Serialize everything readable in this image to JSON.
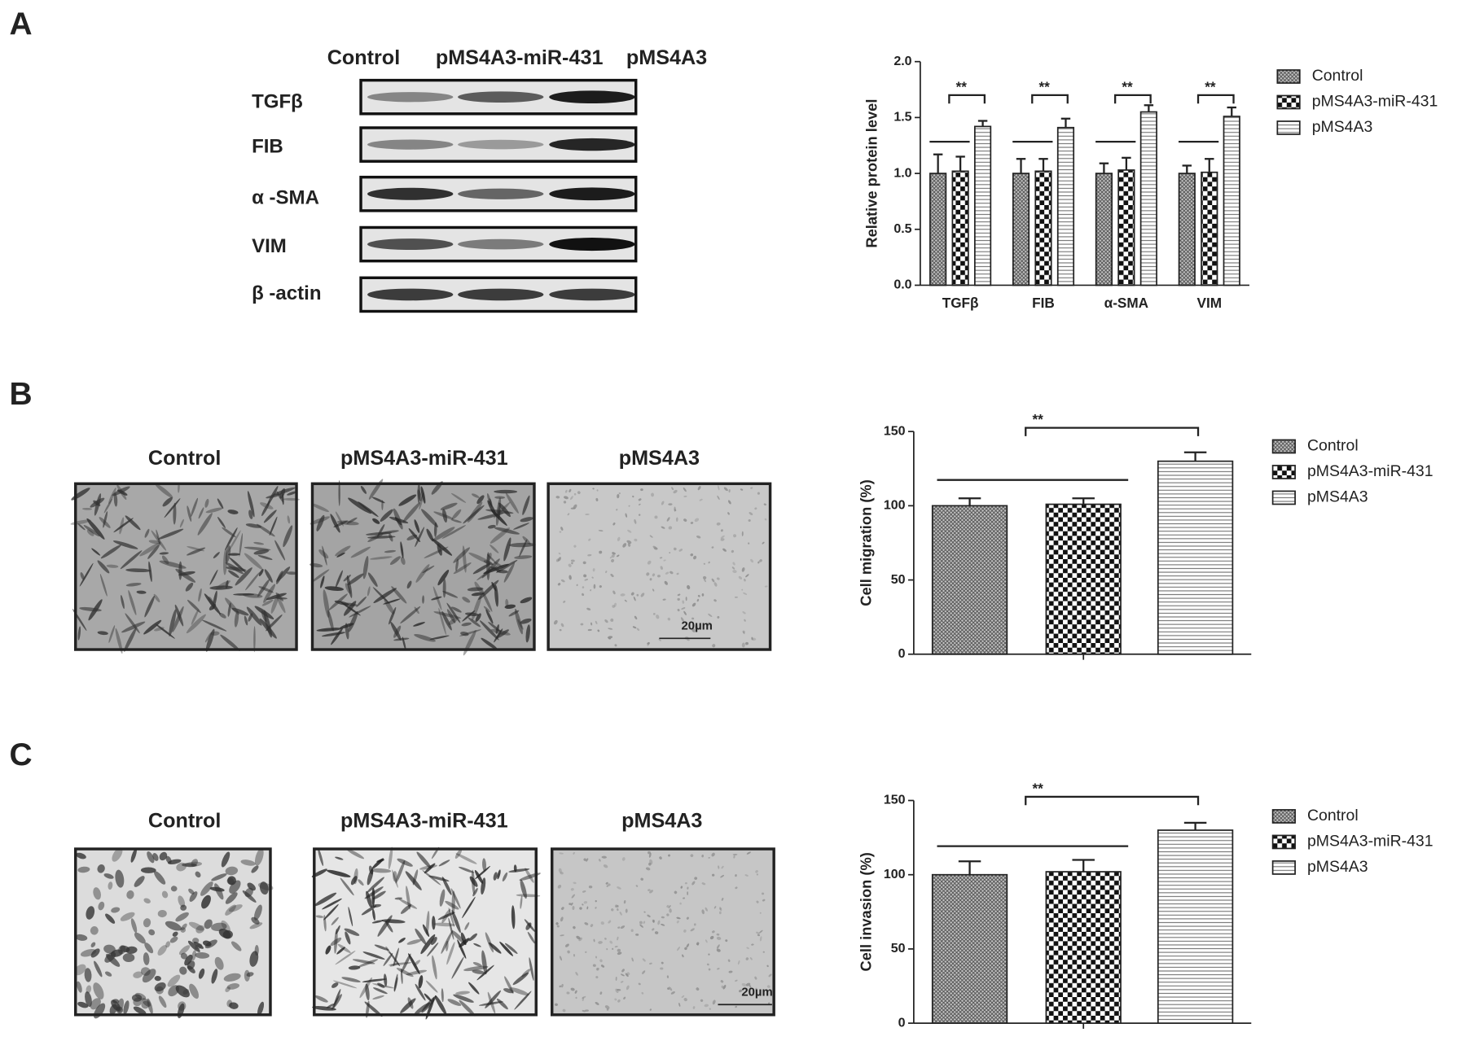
{
  "figure": {
    "panel_labels": [
      "A",
      "B",
      "C"
    ],
    "blot": {
      "lanes": [
        "Control",
        "pMS4A3-miR-431",
        "pMS4A3"
      ],
      "proteins": [
        "TGFβ",
        "FIB",
        "α -SMA",
        "VIM",
        "β -actin"
      ]
    },
    "migration_images": {
      "labels": [
        "Control",
        "pMS4A3-miR-431",
        "pMS4A3"
      ],
      "scale_bar": "20µm"
    },
    "invasion_images": {
      "labels": [
        "Control",
        "pMS4A3-miR-431",
        "pMS4A3"
      ],
      "scale_bar": "20µm"
    }
  },
  "chart_data": [
    {
      "type": "bar",
      "y_label": "Relative protein level",
      "categories": [
        "TGFβ",
        "FIB",
        "α-SMA",
        "VIM"
      ],
      "series": [
        {
          "name": "Control",
          "color": "#555555",
          "pattern": "crosshatch",
          "values": [
            1.0,
            1.0,
            1.0,
            1.0
          ],
          "errors": [
            0.17,
            0.13,
            0.09,
            0.07
          ]
        },
        {
          "name": "pMS4A3-miR-431",
          "color": "#111111",
          "pattern": "checker",
          "values": [
            1.02,
            1.02,
            1.03,
            1.01
          ],
          "errors": [
            0.13,
            0.11,
            0.11,
            0.12
          ]
        },
        {
          "name": "pMS4A3",
          "color": "#777777",
          "pattern": "hstripe",
          "values": [
            1.42,
            1.41,
            1.55,
            1.51
          ],
          "errors": [
            0.05,
            0.08,
            0.06,
            0.08
          ]
        }
      ],
      "significance_label": "**",
      "ylim": [
        0,
        2
      ],
      "yticks": [
        {
          "value": 0,
          "label": "0.0"
        },
        {
          "value": 0.5,
          "label": "0.5"
        },
        {
          "value": 1,
          "label": "1.0"
        },
        {
          "value": 1.5,
          "label": "1.5"
        },
        {
          "value": 2,
          "label": "2.0"
        }
      ],
      "legend": "right",
      "grid": false
    },
    {
      "type": "bar",
      "y_label": "Cell migration (%)",
      "categories": [
        null
      ],
      "series": [
        {
          "name": "Control",
          "color": "#555555",
          "pattern": "crosshatch",
          "values": [
            100
          ],
          "errors": [
            5
          ]
        },
        {
          "name": "pMS4A3-miR-431",
          "color": "#111111",
          "pattern": "checker",
          "values": [
            101
          ],
          "errors": [
            4
          ]
        },
        {
          "name": "pMS4A3",
          "color": "#777777",
          "pattern": "hstripe",
          "values": [
            130
          ],
          "errors": [
            6
          ]
        }
      ],
      "significance_label": "**",
      "ylim": [
        0,
        150
      ],
      "yticks": [
        0,
        50,
        100,
        150
      ],
      "legend": "right",
      "grid": false
    },
    {
      "type": "bar",
      "y_label": "Cell invasion (%)",
      "categories": [
        null
      ],
      "series": [
        {
          "name": "Control",
          "color": "#555555",
          "pattern": "crosshatch",
          "values": [
            100
          ],
          "errors": [
            9
          ]
        },
        {
          "name": "pMS4A3-miR-431",
          "color": "#111111",
          "pattern": "checker",
          "values": [
            102
          ],
          "errors": [
            8
          ]
        },
        {
          "name": "pMS4A3",
          "color": "#777777",
          "pattern": "hstripe",
          "values": [
            130
          ],
          "errors": [
            5
          ]
        }
      ],
      "significance_label": "**",
      "ylim": [
        0,
        150
      ],
      "yticks": [
        0,
        50,
        100,
        150
      ],
      "legend": "right",
      "grid": false
    }
  ]
}
